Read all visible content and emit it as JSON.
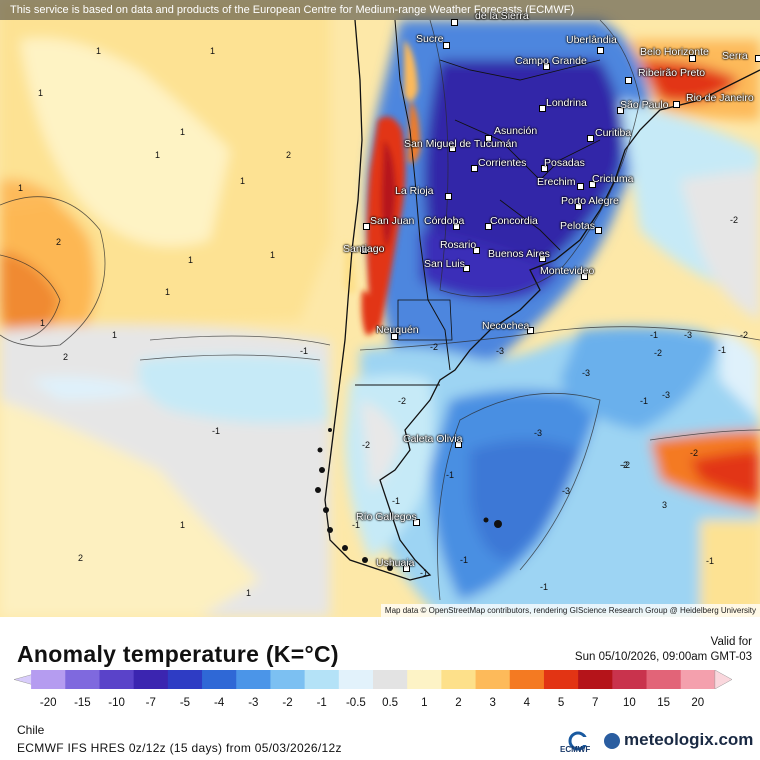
{
  "banner": "This service is based on data and products of the European Centre for Medium-range Weather Forecasts (ECMWF)",
  "attribution": "Map data © OpenStreetMap contributors, rendering GIScience Research Group @ Heidelberg University",
  "cities": [
    {
      "name": "de la Sierra"
    },
    {
      "name": "Sucre"
    },
    {
      "name": "Uberlândia"
    },
    {
      "name": "Belo Horizonte"
    },
    {
      "name": "Serra"
    },
    {
      "name": "Campo Grande"
    },
    {
      "name": "Ribeirão Preto"
    },
    {
      "name": "Rio de Janeiro"
    },
    {
      "name": "São Paulo"
    },
    {
      "name": "Londrina"
    },
    {
      "name": "Asunción"
    },
    {
      "name": "Curitiba"
    },
    {
      "name": "San Miguel de Tucumán"
    },
    {
      "name": "Corrientes"
    },
    {
      "name": "Posadas"
    },
    {
      "name": "Erechim"
    },
    {
      "name": "Criciuma"
    },
    {
      "name": "La Rioja"
    },
    {
      "name": "Porto Alegre"
    },
    {
      "name": "San Juan"
    },
    {
      "name": "Córdoba"
    },
    {
      "name": "Concordia"
    },
    {
      "name": "Pelotas"
    },
    {
      "name": "Santiago"
    },
    {
      "name": "Rosario"
    },
    {
      "name": "Buenos Aires"
    },
    {
      "name": "San Luis"
    },
    {
      "name": "Montevideo"
    },
    {
      "name": "Neuquén"
    },
    {
      "name": "Necochea"
    },
    {
      "name": "Caleta Olivia"
    },
    {
      "name": "Río Gallegos"
    },
    {
      "name": "Ushuaia"
    }
  ],
  "contour_labels": [
    "1",
    "1",
    "1",
    "1",
    "1",
    "1",
    "1",
    "2",
    "1",
    "1",
    "2",
    "1",
    "1",
    "2",
    "1",
    "1",
    "2",
    "-1",
    "-1",
    "-1",
    "-1",
    "-2",
    "-2",
    "-2",
    "-2",
    "-3",
    "-3",
    "-3",
    "-3",
    "-2",
    "-1",
    "-1",
    "-1",
    "3",
    "-3",
    "-2",
    "-2",
    "1",
    "-1",
    "-3",
    "-2",
    "-1",
    "-2",
    "-1",
    "-1",
    "-1"
  ],
  "legend": {
    "title": "Anomaly temperature (K=°C)",
    "valid_label": "Valid for",
    "valid_date": "Sun 05/10/2026, 09:00am GMT-03",
    "region": "Chile",
    "model": "ECMWF IFS HRES 0z/12z (15 days) from 05/03/2026/12z",
    "ticks": [
      "-20",
      "-15",
      "-10",
      "-7",
      "-5",
      "-4",
      "-3",
      "-2",
      "-1",
      "-0.5",
      "0.5",
      "1",
      "2",
      "3",
      "4",
      "5",
      "7",
      "10",
      "15",
      "20"
    ],
    "colors": [
      "#b59cf0",
      "#7f69de",
      "#5a43c9",
      "#3b25b0",
      "#2e3cc4",
      "#2f68d6",
      "#4b95e8",
      "#7cc0f2",
      "#b4e2f7",
      "#e2f2fb",
      "#e3e3e3",
      "#fdf3c6",
      "#fde08a",
      "#fdba5a",
      "#f47a22",
      "#e23414",
      "#b5141a",
      "#c9334d",
      "#e26478",
      "#f4a0ad"
    ],
    "logo_ecmwf": "ECMWF",
    "logo_meteologix": "meteologix.com"
  }
}
